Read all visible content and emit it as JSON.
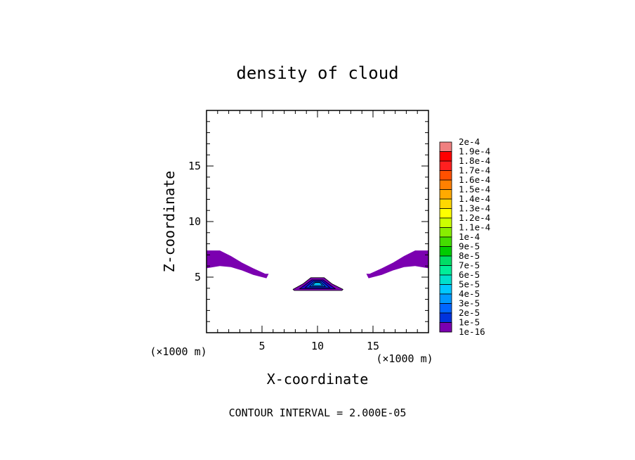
{
  "chart_data": {
    "type": "contour",
    "title": "density of cloud",
    "xlabel": "X-coordinate",
    "ylabel": "Z-coordinate",
    "x_unit": "(×1000 m)",
    "y_unit": "(×1000 m)",
    "xlim": [
      0,
      20
    ],
    "ylim": [
      0,
      20
    ],
    "x_ticks": [
      5,
      10,
      15
    ],
    "y_ticks": [
      5,
      10,
      15
    ],
    "contour_interval_text": "CONTOUR INTERVAL = 2.000E-05",
    "colorbar": {
      "labels": [
        "2e-4",
        "1.9e-4",
        "1.8e-4",
        "1.7e-4",
        "1.6e-4",
        "1.5e-4",
        "1.4e-4",
        "1.3e-4",
        "1.2e-4",
        "1.1e-4",
        "1e-4",
        "9e-5",
        "8e-5",
        "7e-5",
        "6e-5",
        "5e-5",
        "4e-5",
        "3e-5",
        "2e-5",
        "1e-5",
        "1e-16"
      ],
      "colors": [
        "#f08080",
        "#ff0000",
        "#ff2020",
        "#ff5000",
        "#ff8000",
        "#ffaa00",
        "#ffd800",
        "#ffff00",
        "#ccff00",
        "#88ee00",
        "#44dd00",
        "#00cc00",
        "#00dd66",
        "#00ee99",
        "#00e0cc",
        "#00c8ff",
        "#0099ff",
        "#0066ff",
        "#0033dd",
        "#2200cc",
        "#7b00b0"
      ]
    },
    "regions": [
      {
        "name": "left arm",
        "level": "1e-16",
        "polygon": [
          [
            0,
            7.4
          ],
          [
            1.2,
            7.4
          ],
          [
            2.2,
            6.9
          ],
          [
            3.2,
            6.3
          ],
          [
            4.2,
            5.8
          ],
          [
            5.3,
            5.3
          ],
          [
            5.6,
            5.3
          ],
          [
            5.4,
            4.9
          ],
          [
            4.2,
            5.2
          ],
          [
            3.2,
            5.6
          ],
          [
            2.2,
            5.9
          ],
          [
            1.2,
            6.0
          ],
          [
            0,
            5.8
          ]
        ]
      },
      {
        "name": "right arm",
        "level": "1e-16",
        "polygon": [
          [
            20,
            7.4
          ],
          [
            18.8,
            7.4
          ],
          [
            17.8,
            6.9
          ],
          [
            16.8,
            6.3
          ],
          [
            15.8,
            5.8
          ],
          [
            14.7,
            5.3
          ],
          [
            14.4,
            5.3
          ],
          [
            14.6,
            4.9
          ],
          [
            15.8,
            5.2
          ],
          [
            16.8,
            5.6
          ],
          [
            17.8,
            5.9
          ],
          [
            18.8,
            6.0
          ],
          [
            20,
            5.8
          ]
        ]
      },
      {
        "name": "central cloud base",
        "level": "1e-16",
        "polygon": [
          [
            7.9,
            3.8
          ],
          [
            12.2,
            3.8
          ],
          [
            12.3,
            3.9
          ],
          [
            11.3,
            4.4
          ],
          [
            10.6,
            4.95
          ],
          [
            9.4,
            4.95
          ],
          [
            8.7,
            4.4
          ],
          [
            7.8,
            3.9
          ]
        ]
      },
      {
        "name": "central cloud level 1",
        "level": "1e-5",
        "polygon": [
          [
            8.4,
            3.95
          ],
          [
            11.6,
            3.95
          ],
          [
            10.5,
            4.75
          ],
          [
            9.5,
            4.75
          ]
        ]
      },
      {
        "name": "central cloud level 2",
        "level": "2e-5",
        "polygon": [
          [
            8.9,
            4.05
          ],
          [
            11.1,
            4.05
          ],
          [
            10.4,
            4.65
          ],
          [
            9.6,
            4.65
          ]
        ]
      },
      {
        "name": "central cloud level 3",
        "level": "3e-5",
        "polygon": [
          [
            9.3,
            4.15
          ],
          [
            10.7,
            4.15
          ],
          [
            10.3,
            4.55
          ],
          [
            9.7,
            4.55
          ]
        ]
      },
      {
        "name": "central cloud core",
        "level": "5e-5",
        "polygon": [
          [
            9.55,
            4.25
          ],
          [
            10.45,
            4.25
          ],
          [
            10.2,
            4.5
          ],
          [
            9.8,
            4.5
          ]
        ]
      }
    ]
  }
}
